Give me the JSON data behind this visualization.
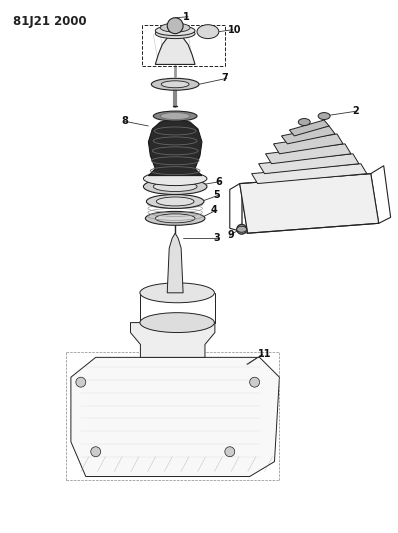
{
  "title": "81J21 2000",
  "bg_color": "#ffffff",
  "line_color": "#222222",
  "title_fontsize": 8.5,
  "label_fontsize": 7,
  "fig_width": 3.98,
  "fig_height": 5.33,
  "dpi": 100
}
